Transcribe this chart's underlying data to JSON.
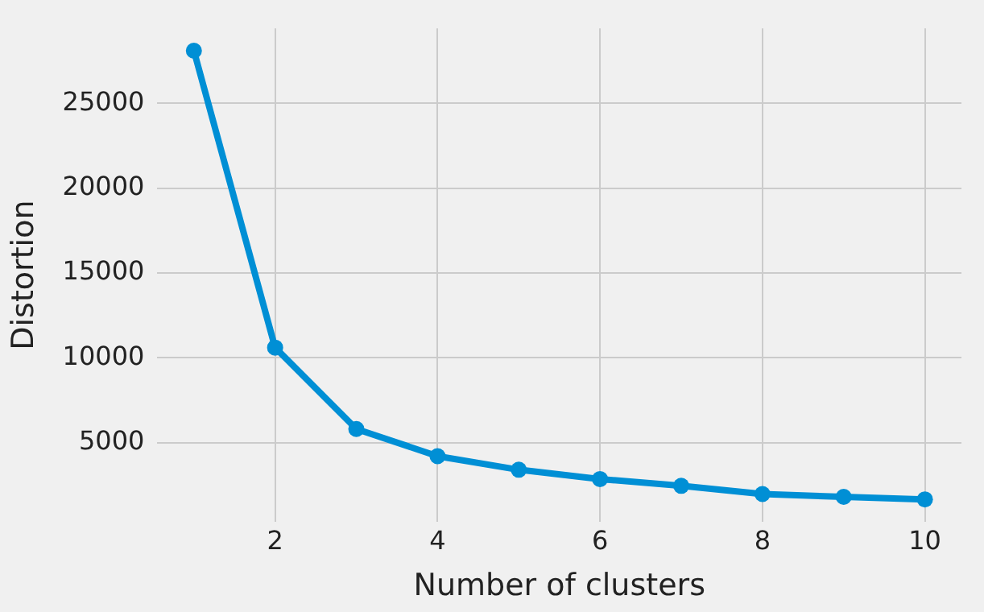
{
  "chart_data": {
    "type": "line",
    "xlabel": "Number of clusters",
    "ylabel": "Distortion",
    "x": [
      1,
      2,
      3,
      4,
      5,
      6,
      7,
      8,
      9,
      10
    ],
    "series": [
      {
        "color": "#008fd5",
        "values": [
          28100,
          10600,
          5800,
          4200,
          3400,
          2850,
          2450,
          1970,
          1800,
          1650
        ]
      }
    ],
    "xlim": [
      0.55,
      10.45
    ],
    "xticks": [
      2,
      4,
      6,
      8,
      10
    ],
    "ylim": [
      330,
      29420
    ],
    "yticks": [
      5000,
      10000,
      15000,
      20000,
      25000
    ],
    "grid": true,
    "marker": "circle",
    "line_style": "solid"
  }
}
